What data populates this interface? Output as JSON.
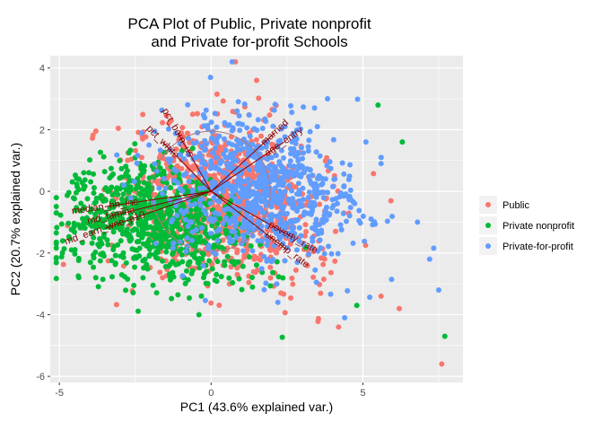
{
  "chart_data": {
    "type": "scatter",
    "title_line1": "PCA Plot of Public, Private nonprofit",
    "title_line2": "and Private for-profit Schools",
    "xlabel": "PC1 (43.6% explained var.)",
    "ylabel": "PC2 (20.7% explained var.)",
    "xlim": [
      -5.3,
      8.3
    ],
    "ylim": [
      -6.2,
      4.4
    ],
    "x_ticks": [
      -5,
      0,
      5
    ],
    "y_ticks": [
      -6,
      -4,
      -2,
      0,
      2,
      4
    ],
    "x_tick_labels": [
      "-5",
      "0",
      "5"
    ],
    "y_tick_labels": [
      "-6",
      "-4",
      "-2",
      "0",
      "2",
      "4"
    ],
    "grid": true,
    "panel_background": "#ebebeb",
    "legend_position": "right",
    "series": [
      {
        "name": "Public",
        "color": "#f8766d",
        "center": [
          0.3,
          -0.2
        ],
        "spread": [
          1.6,
          1.2
        ],
        "count": 900,
        "points": [
          [
            7.6,
            -5.6
          ],
          [
            0.8,
            4.2
          ],
          [
            5.6,
            -3.4
          ],
          [
            4.2,
            -4.4
          ],
          [
            -1.6,
            -2.8
          ],
          [
            2.3,
            -3.3
          ],
          [
            6.2,
            -3.8
          ],
          [
            1.5,
            3.6
          ]
        ]
      },
      {
        "name": "Private nonprofit",
        "color": "#00ba38",
        "center": [
          -1.9,
          -0.9
        ],
        "spread": [
          1.5,
          0.9
        ],
        "count": 800,
        "points": [
          [
            -5.1,
            -1.7
          ],
          [
            7.7,
            -4.7
          ],
          [
            6.3,
            1.6
          ],
          [
            5.5,
            2.8
          ],
          [
            -3.8,
            -2.8
          ],
          [
            -4.6,
            -1.9
          ],
          [
            4.8,
            -3.7
          ],
          [
            -0.4,
            -4.0
          ]
        ]
      },
      {
        "name": "Private-for-profit",
        "color": "#619cff",
        "center": [
          1.6,
          0.2
        ],
        "spread": [
          1.6,
          1.1
        ],
        "count": 800,
        "points": [
          [
            7.5,
            -3.2
          ],
          [
            6.8,
            -1.0
          ],
          [
            5.6,
            0.9
          ],
          [
            5.1,
            1.6
          ],
          [
            3.5,
            2.1
          ],
          [
            2.2,
            -3.6
          ],
          [
            7.2,
            -2.2
          ],
          [
            4.4,
            -4.1
          ]
        ]
      }
    ],
    "loadings": [
      {
        "label": "pct_born_us",
        "x": -1.1,
        "y": 1.9
      },
      {
        "label": "pct_white",
        "x": -1.6,
        "y": 1.6
      },
      {
        "label": "married",
        "x": 2.1,
        "y": 1.9
      },
      {
        "label": "age_entry",
        "x": 2.4,
        "y": 1.6
      },
      {
        "label": "median_hh_inc",
        "x": -3.5,
        "y": -0.5
      },
      {
        "label": "md_faminc",
        "x": -3.3,
        "y": -0.8
      },
      {
        "label": "md_earn_wne_p10",
        "x": -3.5,
        "y": -1.2
      },
      {
        "label": "poverty_rate",
        "x": 2.7,
        "y": -1.5
      },
      {
        "label": "unemp_rate",
        "x": 2.5,
        "y": -1.9
      }
    ],
    "loading_circle_radius": 1.95,
    "legend": {
      "title": "",
      "items": [
        "Public",
        "Private nonprofit",
        "Private-for-profit"
      ]
    }
  }
}
